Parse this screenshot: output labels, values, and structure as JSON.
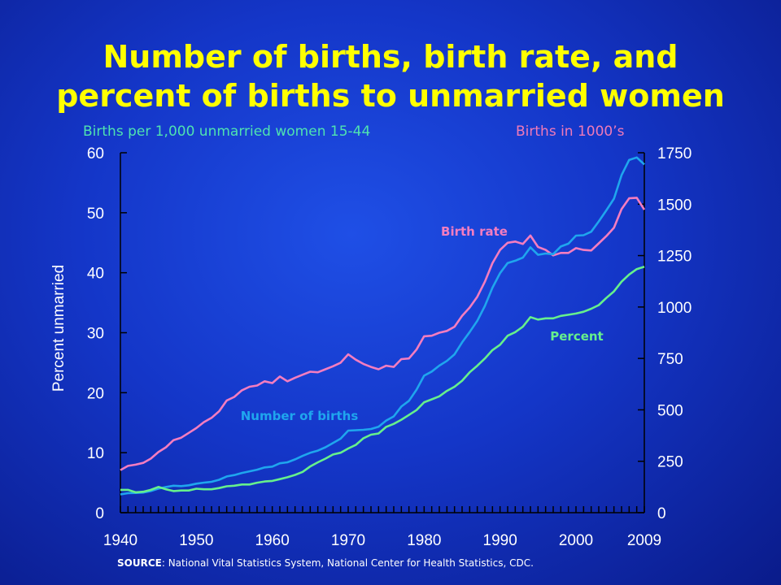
{
  "title_line1": "Number of births, birth rate, and",
  "title_line2": "percent of births to unmarried women",
  "left_axis_caption": "Births per 1,000 unmarried women 15-44",
  "right_axis_caption": "Births in 1000’s",
  "ylabel": "Percent unmarried",
  "source_prefix": "SOURCE",
  "source_text": ": National Vital Statistics System, National Center for Health Statistics, CDC.",
  "colors": {
    "background": "#1436c8",
    "title": "#ffff00",
    "birth_rate": "#f47dc0",
    "number_of_births": "#1fa6ee",
    "percent": "#66f08c"
  },
  "chart_data": {
    "type": "line",
    "xlim": [
      1940,
      2009
    ],
    "x_ticks": [
      1940,
      1950,
      1960,
      1970,
      1980,
      1990,
      2000,
      2009
    ],
    "left_ylim": [
      0,
      60
    ],
    "left_ticks": [
      0,
      10,
      20,
      30,
      40,
      50,
      60
    ],
    "right_ylim": [
      0,
      1750
    ],
    "right_ticks": [
      0,
      250,
      500,
      750,
      1000,
      1250,
      1500,
      1750
    ],
    "x": [
      1940,
      1941,
      1942,
      1943,
      1944,
      1945,
      1946,
      1947,
      1948,
      1949,
      1950,
      1951,
      1952,
      1953,
      1954,
      1955,
      1956,
      1957,
      1958,
      1959,
      1960,
      1961,
      1962,
      1963,
      1964,
      1965,
      1966,
      1967,
      1968,
      1969,
      1970,
      1971,
      1972,
      1973,
      1974,
      1975,
      1976,
      1977,
      1978,
      1979,
      1980,
      1981,
      1982,
      1983,
      1984,
      1985,
      1986,
      1987,
      1988,
      1989,
      1990,
      1991,
      1992,
      1993,
      1994,
      1995,
      1996,
      1997,
      1998,
      1999,
      2000,
      2001,
      2002,
      2003,
      2004,
      2005,
      2006,
      2007,
      2008,
      2009
    ],
    "series": [
      {
        "name": "Birth rate",
        "axis": "left",
        "values": [
          7.1,
          7.8,
          8.0,
          8.3,
          9.0,
          10.1,
          10.9,
          12.1,
          12.5,
          13.3,
          14.1,
          15.1,
          15.8,
          16.9,
          18.7,
          19.3,
          20.4,
          21.0,
          21.2,
          21.9,
          21.6,
          22.7,
          21.9,
          22.5,
          23.0,
          23.5,
          23.4,
          23.9,
          24.4,
          25.0,
          26.4,
          25.5,
          24.8,
          24.3,
          23.9,
          24.5,
          24.3,
          25.6,
          25.7,
          27.2,
          29.4,
          29.5,
          30.0,
          30.3,
          31.0,
          32.8,
          34.2,
          36.0,
          38.5,
          41.6,
          43.8,
          45.0,
          45.2,
          44.8,
          46.2,
          44.3,
          43.8,
          42.9,
          43.3,
          43.3,
          44.1,
          43.8,
          43.7,
          44.9,
          46.1,
          47.5,
          50.6,
          52.4,
          52.5,
          50.5
        ]
      },
      {
        "name": "Number of births",
        "axis": "right",
        "values": [
          89,
          95,
          96,
          98,
          105,
          117,
          125,
          131,
          129,
          133,
          141,
          146,
          150,
          160,
          176,
          183,
          193,
          201,
          209,
          220,
          224,
          240,
          245,
          259,
          276,
          291,
          302,
          318,
          339,
          360,
          399,
          401,
          403,
          407,
          418,
          448,
          468,
          516,
          544,
          598,
          666,
          686,
          715,
          738,
          770,
          828,
          878,
          933,
          1005,
          1094,
          1165,
          1214,
          1225,
          1240,
          1290,
          1254,
          1260,
          1257,
          1294,
          1308,
          1347,
          1349,
          1366,
          1416,
          1470,
          1527,
          1641,
          1715,
          1727,
          1693
        ]
      },
      {
        "name": "Percent",
        "axis": "left",
        "values": [
          3.8,
          3.8,
          3.4,
          3.5,
          3.8,
          4.3,
          3.9,
          3.6,
          3.7,
          3.7,
          4.0,
          3.9,
          3.9,
          4.1,
          4.4,
          4.5,
          4.7,
          4.7,
          5.0,
          5.2,
          5.3,
          5.6,
          5.9,
          6.3,
          6.8,
          7.7,
          8.4,
          9.0,
          9.7,
          10.0,
          10.7,
          11.3,
          12.4,
          13.0,
          13.2,
          14.3,
          14.8,
          15.5,
          16.3,
          17.1,
          18.4,
          18.9,
          19.4,
          20.3,
          21.0,
          22.0,
          23.4,
          24.5,
          25.7,
          27.1,
          28.0,
          29.5,
          30.1,
          31.0,
          32.6,
          32.2,
          32.4,
          32.4,
          32.8,
          33.0,
          33.2,
          33.5,
          34.0,
          34.6,
          35.8,
          36.9,
          38.5,
          39.7,
          40.6,
          41.0
        ]
      }
    ]
  },
  "series_labels": {
    "birth_rate": "Birth rate",
    "number_of_births": "Number of births",
    "percent": "Percent"
  }
}
